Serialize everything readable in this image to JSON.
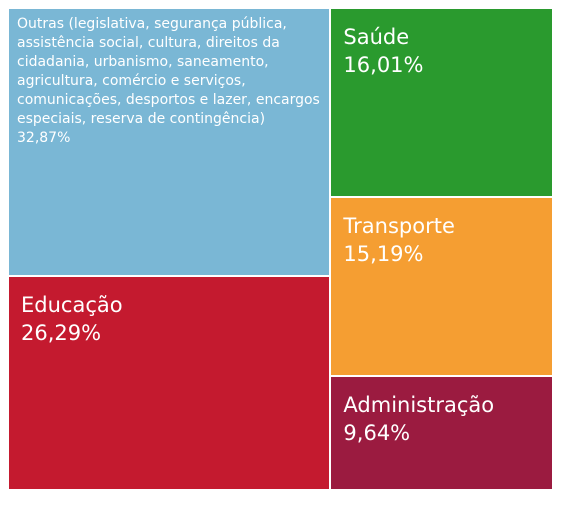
{
  "chart_data": {
    "type": "treemap",
    "categories": [
      "Outras (legislativa, segurança pública, assistência social, cultura, direitos da cidadania, urbanismo, saneamento, agricultura, comércio e serviços, comunicações, desportos e lazer, encargos especiais, reserva de contingência)",
      "Educação",
      "Saúde",
      "Transporte",
      "Administração"
    ],
    "values": [
      32.87,
      26.29,
      16.01,
      15.19,
      9.64
    ],
    "value_labels": [
      "32,87%",
      "26,29%",
      "16,01%",
      "15,19%",
      "9,64%"
    ],
    "colors": [
      "#7ab7d5",
      "#c41a2f",
      "#2a9a2e",
      "#f59e32",
      "#9b1b40"
    ]
  }
}
